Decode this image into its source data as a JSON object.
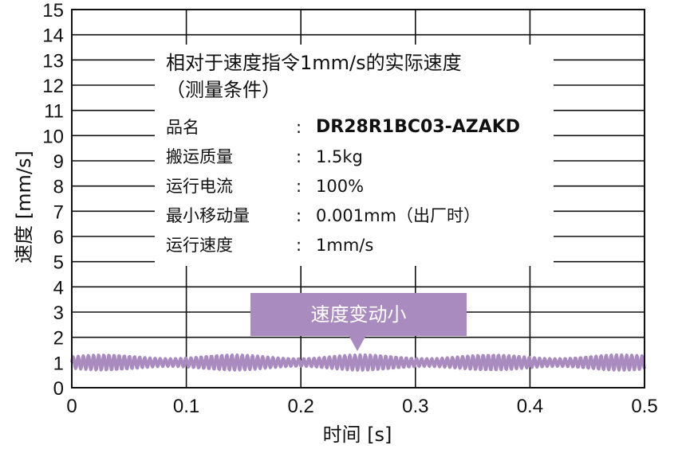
{
  "chart_data": {
    "type": "line",
    "xlabel": "时间 [s]",
    "ylabel": "速度 [mm/s]",
    "xlim": [
      0,
      0.5
    ],
    "ylim": [
      0,
      15
    ],
    "x_ticks": [
      "0",
      "0.1",
      "0.2",
      "0.3",
      "0.4",
      "0.5"
    ],
    "y_ticks": [
      "0",
      "1",
      "2",
      "3",
      "4",
      "5",
      "6",
      "7",
      "8",
      "9",
      "10",
      "11",
      "12",
      "13",
      "14",
      "15"
    ],
    "grid": "horizontal and vertical",
    "series": [
      {
        "color": "#a98bc0",
        "x": [
          0,
          0.025,
          0.05,
          0.075,
          0.1,
          0.125,
          0.15,
          0.175,
          0.2,
          0.225,
          0.25,
          0.275,
          0.3,
          0.325,
          0.35,
          0.375,
          0.4,
          0.425,
          0.45,
          0.475,
          0.5
        ],
        "values": [
          1.0,
          1.0,
          1.0,
          1.0,
          1.0,
          1.0,
          1.0,
          1.0,
          1.0,
          1.0,
          1.0,
          1.0,
          1.0,
          1.0,
          1.0,
          1.0,
          1.0,
          1.0,
          1.0,
          1.0,
          1.0
        ],
        "ripple_amplitude": 0.3
      }
    ]
  },
  "info_box": {
    "title": "相对于速度指令1mm/s的实际速度",
    "subtitle": "（测量条件）",
    "rows": [
      {
        "key": "品名",
        "colon": ":",
        "value": "DR28R1BC03-AZAKD"
      },
      {
        "key": "搬运质量",
        "colon": ":",
        "value": "1.5kg"
      },
      {
        "key": "运行电流",
        "colon": ":",
        "value": "100%"
      },
      {
        "key": "最小移动量",
        "colon": ":",
        "value": "0.001mm（出厂时）"
      },
      {
        "key": "运行速度",
        "colon": ":",
        "value": "1mm/s"
      }
    ]
  },
  "callout": {
    "label": "速度变动小",
    "color": "#a98bc0"
  }
}
